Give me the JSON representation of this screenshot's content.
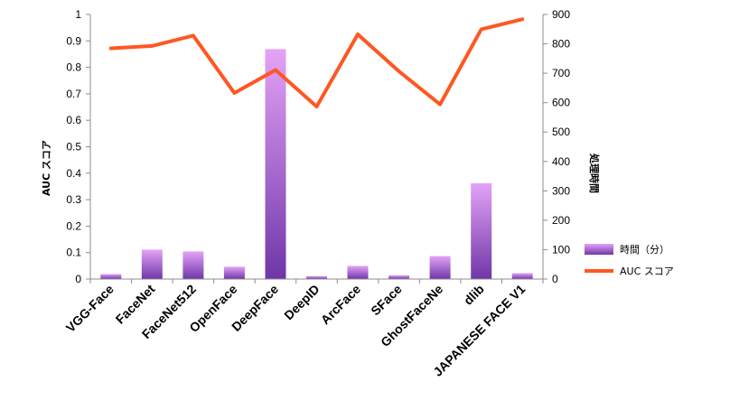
{
  "chart_data": {
    "type": "bar",
    "categories": [
      "VGG-Face",
      "FaceNet",
      "FaceNet512",
      "OpenFace",
      "DeepFace",
      "DeepID",
      "ArcFace",
      "SFace",
      "GhostFaceNe",
      "dlib",
      "JAPANESE FACE V1"
    ],
    "series": [
      {
        "name": "時間（分）",
        "type": "bar",
        "axis": "right",
        "color": "#9a4fc9",
        "values": [
          17,
          100,
          94,
          42,
          782,
          10,
          45,
          13,
          78,
          326,
          20
        ]
      },
      {
        "name": "AUC スコア",
        "type": "line",
        "axis": "left",
        "color": "#ff5722",
        "values": [
          0.872,
          0.881,
          0.92,
          0.703,
          0.79,
          0.652,
          0.925,
          0.785,
          0.66,
          0.944,
          0.982
        ]
      }
    ],
    "ylabel": "AUC スコア",
    "ylim": [
      0,
      1
    ],
    "yticks": [
      "0",
      "0.1",
      "0.2",
      "0.3",
      "0.4",
      "0.5",
      "0.6",
      "0.7",
      "0.8",
      "0.9",
      "1"
    ],
    "y2label": "処理時間",
    "y2lim": [
      0,
      900
    ],
    "y2ticks": [
      "0",
      "100",
      "200",
      "300",
      "400",
      "500",
      "600",
      "700",
      "800",
      "900"
    ],
    "grid": false,
    "legend_position": "right"
  }
}
